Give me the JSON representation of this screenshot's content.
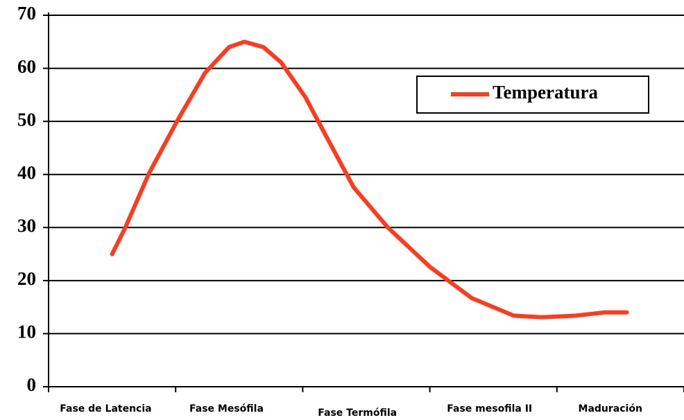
{
  "chart_data": {
    "type": "line",
    "x": [
      0.5,
      0.6,
      0.79,
      1.01,
      1.23,
      1.42,
      1.54,
      1.69,
      1.83,
      2.02,
      2.18,
      2.4,
      2.67,
      3.0,
      3.33,
      3.66,
      3.88,
      4.15,
      4.37,
      4.55
    ],
    "series": [
      {
        "name": "Temperatura",
        "color": "#ff3b1f",
        "values": [
          25,
          29.8,
          40.2,
          50,
          59.1,
          64,
          65,
          64,
          61.1,
          54.6,
          47.4,
          37.6,
          30,
          22.6,
          16.7,
          13.4,
          13.1,
          13.4,
          14,
          14
        ]
      }
    ],
    "xlim": [
      0,
      5
    ],
    "xticks": [
      {
        "value": 0.45,
        "label": "Fase de Latencia"
      },
      {
        "value": 1.4,
        "label": "Fase Mesófila"
      },
      {
        "value": 2.43,
        "label": "Fase Termófila"
      },
      {
        "value": 3.47,
        "label": "Fase mesofila II"
      },
      {
        "value": 4.42,
        "label": "Maduración"
      }
    ],
    "ylim": [
      0,
      70
    ],
    "yticks": [
      0,
      10,
      20,
      30,
      40,
      50,
      60,
      70
    ],
    "grid": true,
    "legend": "upper right"
  }
}
